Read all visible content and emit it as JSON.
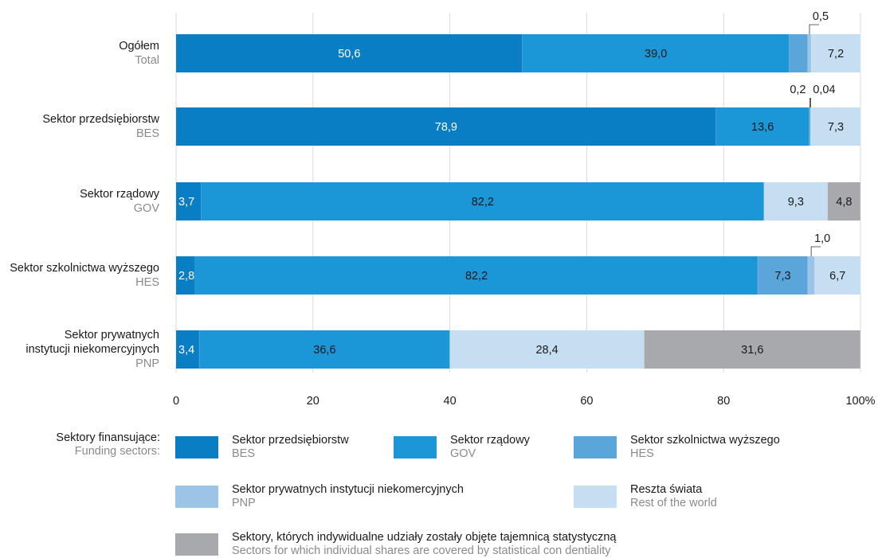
{
  "chart_data": {
    "type": "bar",
    "orientation": "horizontal",
    "stacked": true,
    "categories": [
      {
        "pl": "Ogółem",
        "en": "Total"
      },
      {
        "pl": "Sektor przedsiębiorstw",
        "en": "BES"
      },
      {
        "pl": "Sektor rządowy",
        "en": "GOV"
      },
      {
        "pl": "Sektor szkolnictwa wyższego",
        "en": "HES"
      },
      {
        "pl": [
          "Sektor prywatnych",
          "instytucji niekomercyjnych"
        ],
        "en": "PNP"
      }
    ],
    "series": [
      {
        "name": "Sektor przedsiębiorstw",
        "name_en": "BES",
        "color": "#0a7ec5",
        "values": [
          50.6,
          78.9,
          3.7,
          2.8,
          3.4
        ],
        "labels": [
          "50,6",
          "78,9",
          "3,7",
          "2,8",
          "3,4"
        ]
      },
      {
        "name": "Sektor rządowy",
        "name_en": "GOV",
        "color": "#1b96d6",
        "values": [
          39.0,
          13.6,
          82.2,
          82.2,
          36.6
        ],
        "labels": [
          "39,0",
          "13,6",
          "82,2",
          "82,2",
          "36,6"
        ]
      },
      {
        "name": "Sektor szkolnictwa wyższego",
        "name_en": "HES",
        "color": "#5aa6da",
        "values": [
          2.7,
          0.2,
          0,
          7.3,
          0
        ],
        "labels": [
          "2,7",
          "0,2",
          "",
          "7,3",
          ""
        ]
      },
      {
        "name": "Sektor prywatnych instytucji niekomercyjnych",
        "name_en": "PNP",
        "color": "#9cc4e6",
        "values": [
          0.5,
          0.04,
          0,
          1.0,
          0
        ],
        "labels": [
          "0,5",
          "0,04",
          "",
          "1,0",
          ""
        ]
      },
      {
        "name": "Reszta świata",
        "name_en": "Rest of the world",
        "color": "#c6def2",
        "values": [
          7.2,
          7.3,
          9.3,
          6.7,
          28.4
        ],
        "labels": [
          "7,2",
          "7,3",
          "9,3",
          "6,7",
          "28,4"
        ]
      },
      {
        "name": "Sektory, których indywidualne udziały zostały objęte tajemnicą statystyczną",
        "name_en": "Sectors for which individual shares are covered by statistical con dentiality",
        "color": "#a7a9ac",
        "values": [
          0,
          0,
          4.8,
          0,
          31.6
        ],
        "labels": [
          "",
          "",
          "4,8",
          "",
          "31,6"
        ]
      }
    ],
    "callout_labels": [
      {
        "category": 0,
        "series": 3,
        "text": "0,5"
      },
      {
        "category": 1,
        "series": 2,
        "text": "0,2"
      },
      {
        "category": 1,
        "series": 3,
        "text": "0,04"
      },
      {
        "category": 3,
        "series": 3,
        "text": "1,0"
      }
    ],
    "x_ticks": [
      "0",
      "20",
      "40",
      "60",
      "80",
      "100%"
    ],
    "x_tick_values": [
      0,
      20,
      40,
      60,
      80,
      100
    ],
    "xlim": [
      0,
      100
    ],
    "grid": true,
    "legend_position": "bottom"
  },
  "legend": {
    "title_pl": "Sektory finansujące:",
    "title_en": "Funding sectors:"
  }
}
